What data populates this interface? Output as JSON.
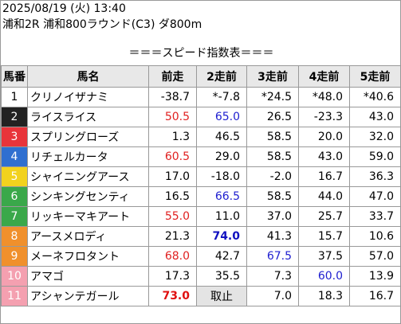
{
  "header": {
    "datetime": "2025/08/19 (火) 13:40",
    "race": "浦和2R 浦和800ラウンド(C3) ダ800m",
    "title": "＝＝＝スピード指数表＝＝＝"
  },
  "table": {
    "columns": [
      "馬番",
      "馬名",
      "前走",
      "2走前",
      "3走前",
      "4走前",
      "5走前"
    ],
    "rows": [
      {
        "num": "1",
        "frame": "#ffffff",
        "num_color": "#000000",
        "name": "クリノイザナミ",
        "values": [
          {
            "text": "-38.7"
          },
          {
            "text": "*-7.8"
          },
          {
            "text": "*24.5"
          },
          {
            "text": "*48.0"
          },
          {
            "text": "*40.6"
          }
        ]
      },
      {
        "num": "2",
        "frame": "#222222",
        "num_color": "#ffffff",
        "name": "ライスライス",
        "values": [
          {
            "text": "50.5",
            "color": "#e02020"
          },
          {
            "text": "65.0",
            "color": "#2020d0"
          },
          {
            "text": "26.5"
          },
          {
            "text": "-23.3"
          },
          {
            "text": "43.0"
          }
        ]
      },
      {
        "num": "3",
        "frame": "#e8343a",
        "num_color": "#ffffff",
        "name": "スプリングローズ",
        "values": [
          {
            "text": "1.3"
          },
          {
            "text": "46.5"
          },
          {
            "text": "58.5"
          },
          {
            "text": "20.0"
          },
          {
            "text": "32.0"
          }
        ]
      },
      {
        "num": "4",
        "frame": "#2f6fd0",
        "num_color": "#ffffff",
        "name": "リチェルカータ",
        "values": [
          {
            "text": "60.5",
            "color": "#e02020"
          },
          {
            "text": "29.0"
          },
          {
            "text": "58.5"
          },
          {
            "text": "43.0"
          },
          {
            "text": "59.0"
          }
        ]
      },
      {
        "num": "5",
        "frame": "#f2d21e",
        "num_color": "#ffffff",
        "name": "シャイニングアース",
        "values": [
          {
            "text": "17.0"
          },
          {
            "text": "-18.0"
          },
          {
            "text": "-2.0"
          },
          {
            "text": "16.7"
          },
          {
            "text": "36.3"
          }
        ]
      },
      {
        "num": "6",
        "frame": "#3aa84a",
        "num_color": "#ffffff",
        "name": "シンキングセンティ",
        "values": [
          {
            "text": "16.5"
          },
          {
            "text": "66.5",
            "color": "#2020d0"
          },
          {
            "text": "58.5"
          },
          {
            "text": "44.0"
          },
          {
            "text": "47.0"
          }
        ]
      },
      {
        "num": "7",
        "frame": "#3aa84a",
        "num_color": "#ffffff",
        "name": "リッキーマキアート",
        "values": [
          {
            "text": "55.0",
            "color": "#e02020"
          },
          {
            "text": "11.0"
          },
          {
            "text": "37.0"
          },
          {
            "text": "25.7"
          },
          {
            "text": "33.7"
          }
        ]
      },
      {
        "num": "8",
        "frame": "#f0902c",
        "num_color": "#ffffff",
        "name": "アースメロディ",
        "values": [
          {
            "text": "21.3"
          },
          {
            "text": "74.0",
            "color": "#1010c0",
            "bold": true
          },
          {
            "text": "41.3"
          },
          {
            "text": "15.7"
          },
          {
            "text": "10.6"
          }
        ]
      },
      {
        "num": "9",
        "frame": "#f0902c",
        "num_color": "#ffffff",
        "name": "メーネフロタント",
        "values": [
          {
            "text": "68.0",
            "color": "#e02020"
          },
          {
            "text": "42.7"
          },
          {
            "text": "67.5",
            "color": "#2020d0"
          },
          {
            "text": "37.5"
          },
          {
            "text": "57.0"
          }
        ]
      },
      {
        "num": "10",
        "frame": "#f4a0b0",
        "num_color": "#ffffff",
        "name": "アマゴ",
        "values": [
          {
            "text": "17.3"
          },
          {
            "text": "35.5"
          },
          {
            "text": "7.3"
          },
          {
            "text": "60.0",
            "color": "#2020d0"
          },
          {
            "text": "13.9"
          }
        ]
      },
      {
        "num": "11",
        "frame": "#f4a0b0",
        "num_color": "#ffffff",
        "name": "アシャンテガール",
        "values": [
          {
            "text": "73.0",
            "color": "#e01010",
            "bold": true
          },
          {
            "text": "取止",
            "bg": "#e4e4e4",
            "center": true
          },
          {
            "text": "7.0"
          },
          {
            "text": "18.3"
          },
          {
            "text": "16.7"
          }
        ]
      }
    ]
  }
}
